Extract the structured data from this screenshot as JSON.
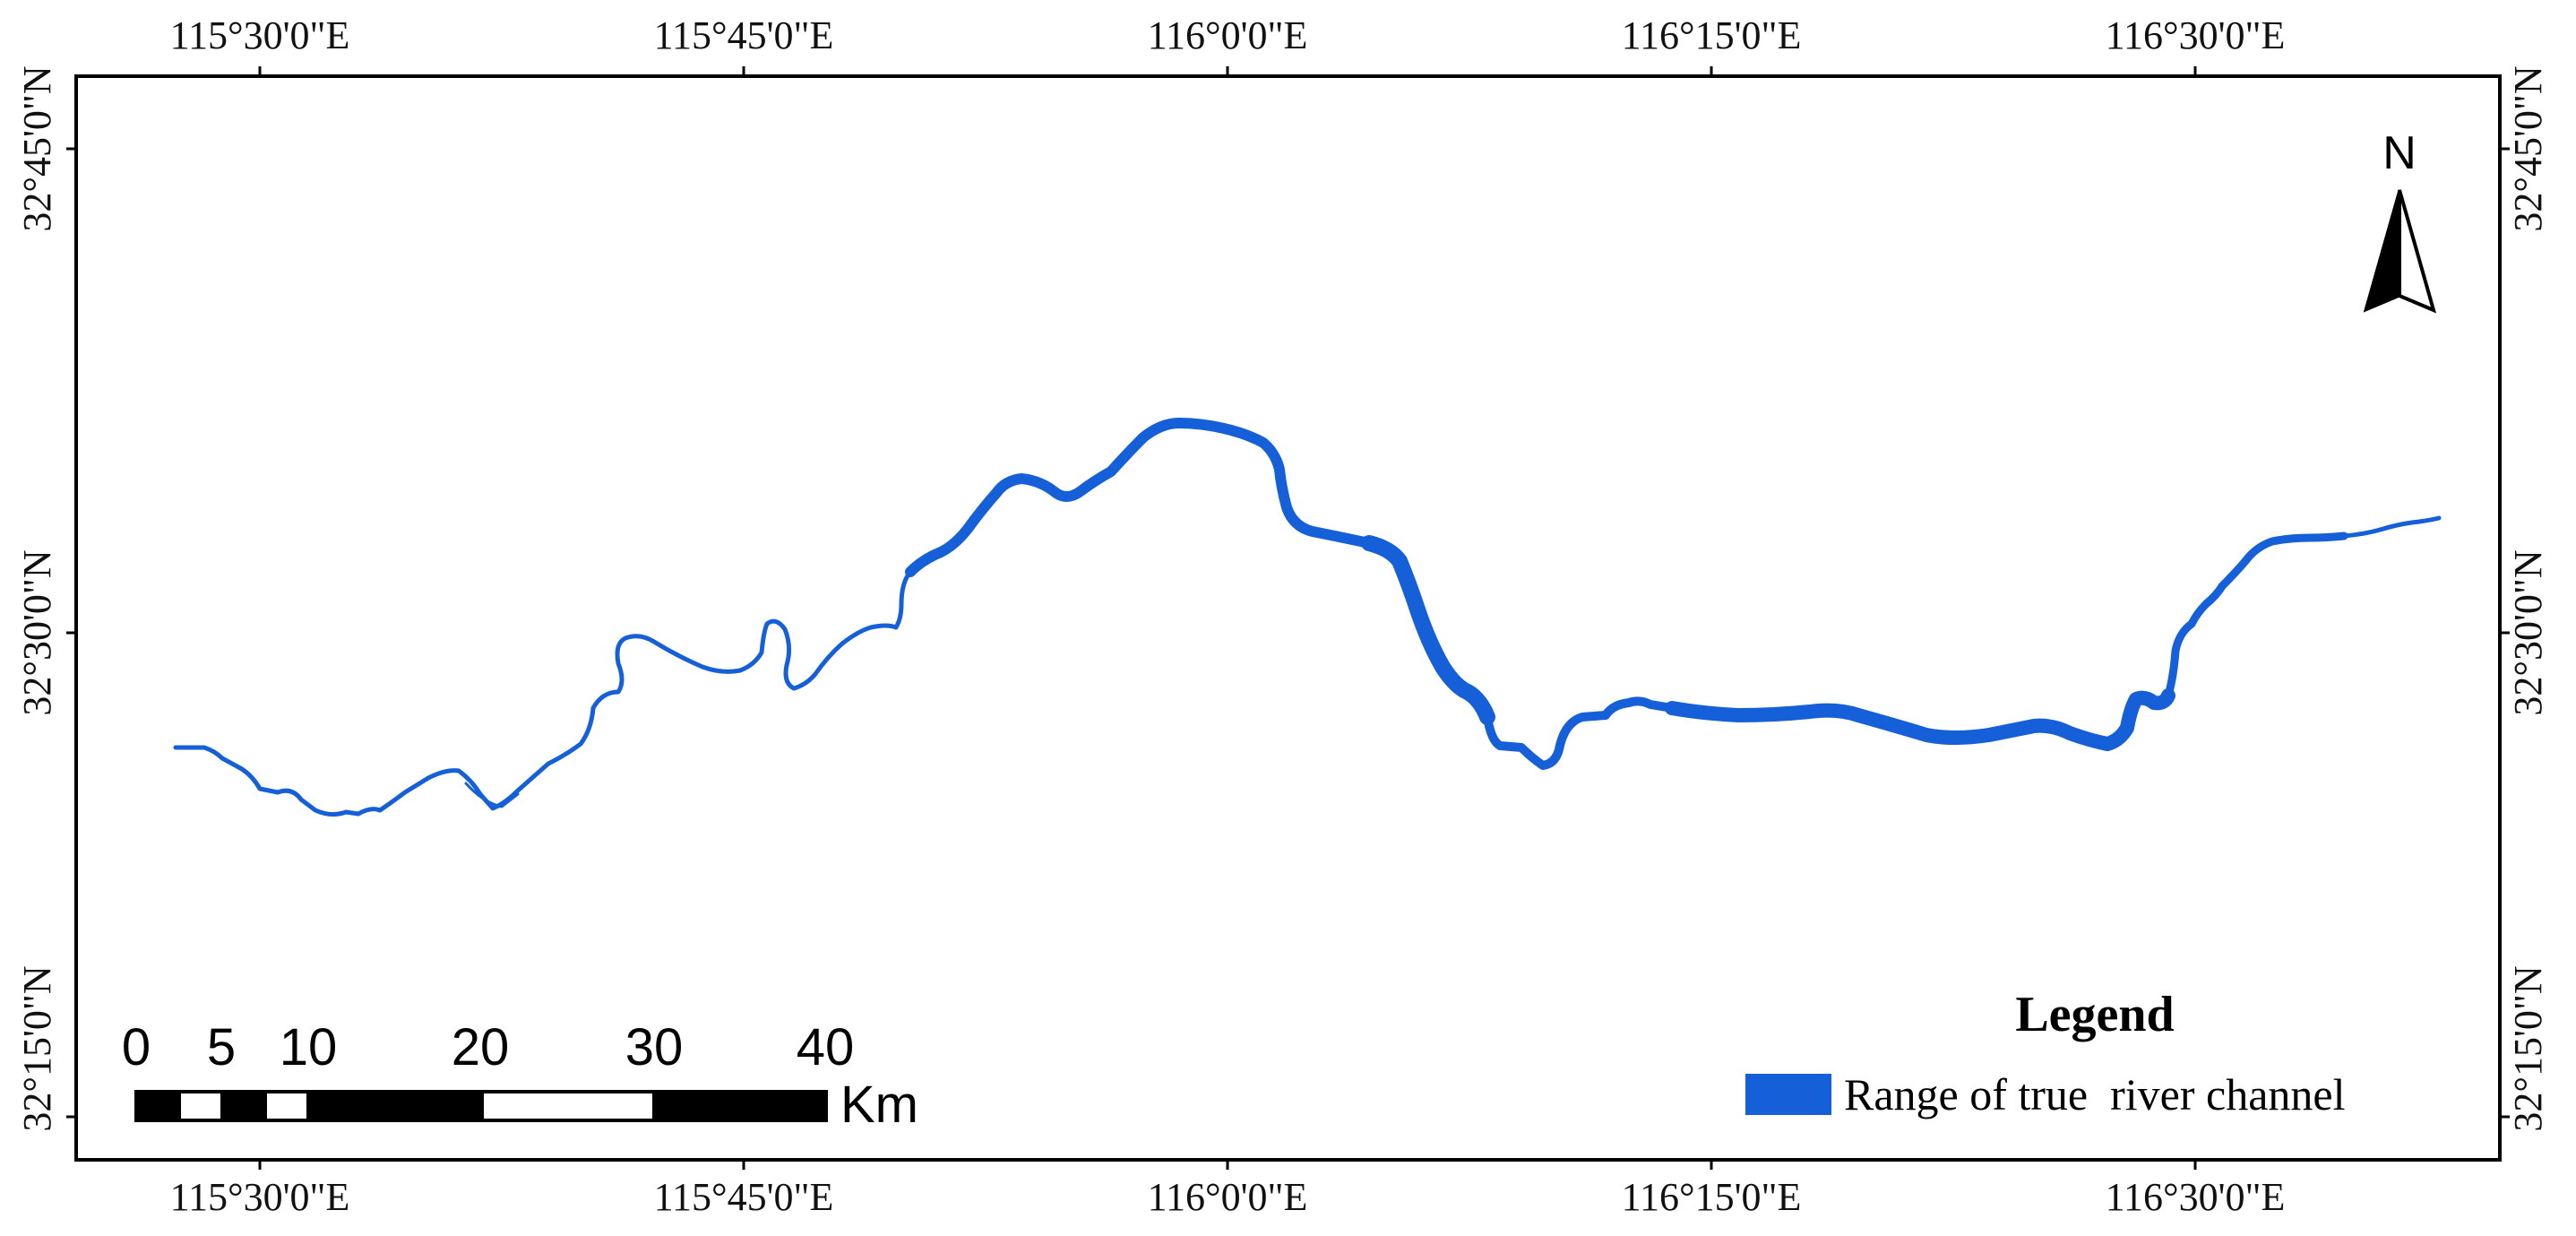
{
  "map": {
    "top_longitude_labels": [
      "115°30'0\"E",
      "115°45'0\"E",
      "116°0'0\"E",
      "116°15'0\"E",
      "116°30'0\"E"
    ],
    "bottom_longitude_labels": [
      "115°30'0\"E",
      "115°45'0\"E",
      "116°0'0\"E",
      "116°15'0\"E",
      "116°30'0\"E"
    ],
    "left_latitude_labels": [
      "32°45'0\"N",
      "32°30'0\"N",
      "32°15'0\"N"
    ],
    "right_latitude_labels": [
      "32°45'0\"N",
      "32°30'0\"N",
      "32°15'0\"N"
    ],
    "river_color": "#1560d8"
  },
  "north_arrow": {
    "letter": "N",
    "icon": "north-arrow-icon"
  },
  "scale_bar": {
    "labels": [
      "0",
      "5",
      "10",
      "20",
      "30",
      "40"
    ],
    "unit": "Km"
  },
  "legend": {
    "title": "Legend",
    "items": [
      {
        "label": "Range of true  river channel",
        "color": "#1560d8"
      }
    ]
  }
}
